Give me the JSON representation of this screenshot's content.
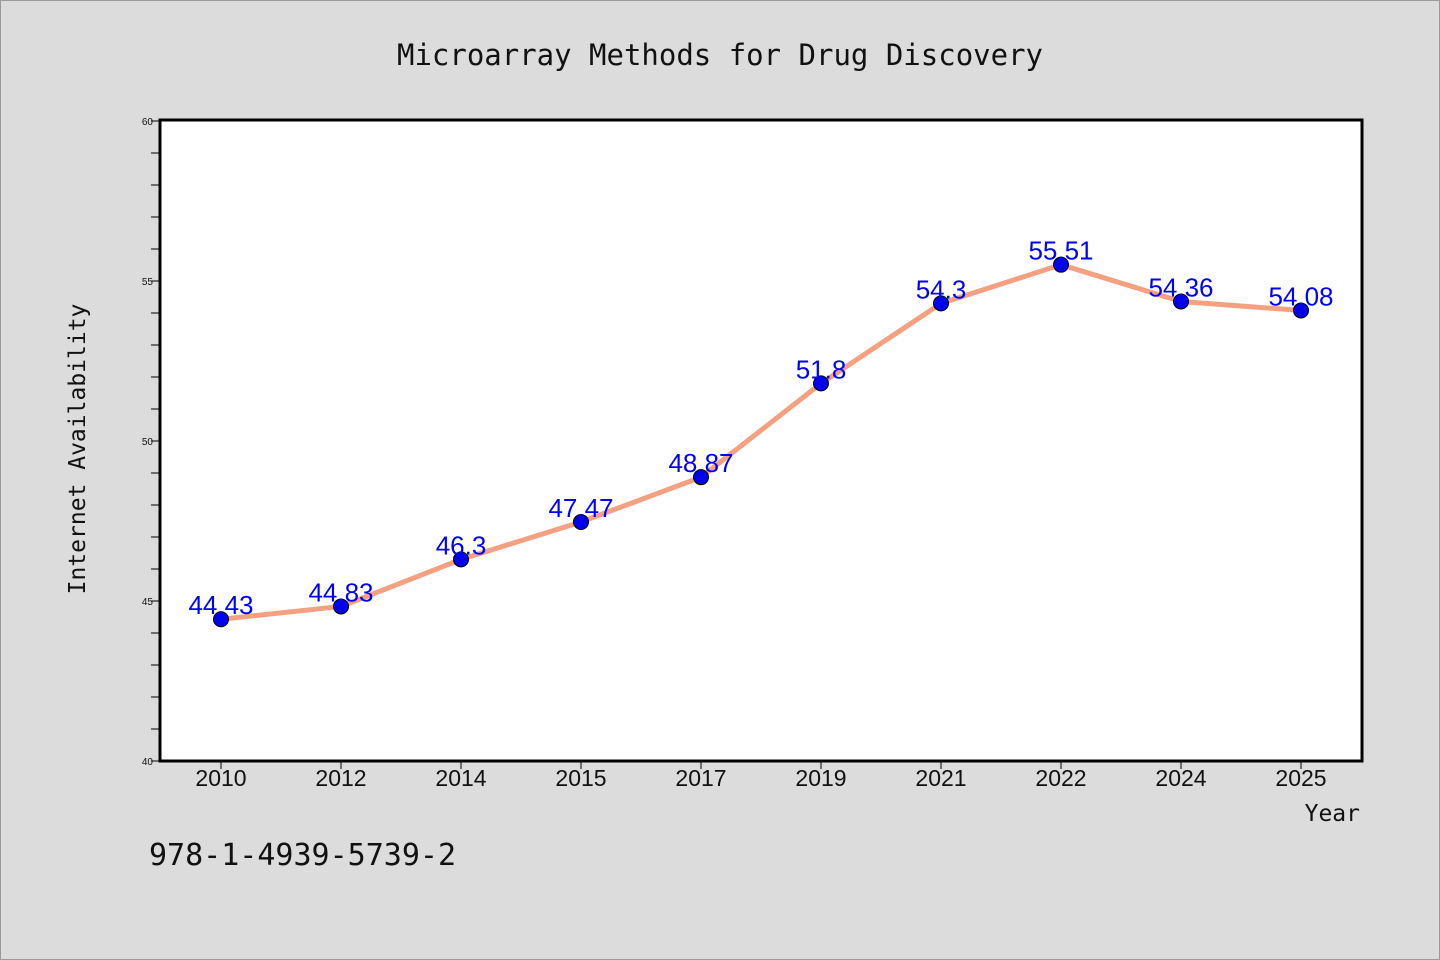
{
  "chart_data": {
    "type": "line",
    "title": "Microarray Methods for Drug Discovery",
    "xlabel": "Year",
    "ylabel": "Internet Availability",
    "categories": [
      "2010",
      "2012",
      "2014",
      "2015",
      "2017",
      "2019",
      "2021",
      "2022",
      "2024",
      "2025"
    ],
    "series": [
      {
        "values": [
          44.43,
          44.83,
          46.3,
          47.47,
          48.87,
          51.8,
          54.3,
          55.51,
          54.36,
          54.08
        ],
        "labels": [
          "44.43",
          "44.83",
          "46.3",
          "47.47",
          "48.87",
          "51.8",
          "54.3",
          "55.51",
          "54.36",
          "54.08"
        ],
        "line_color": "#f5a080",
        "marker_color": "#0000ee"
      }
    ],
    "ylim": [
      40,
      60
    ],
    "yticks": [
      40,
      45,
      50,
      55,
      60
    ],
    "grid": false,
    "legend": "none"
  },
  "annotation": "978-1-4939-5739-2",
  "colors": {
    "background": "#dcdcdc",
    "plot_background": "#ffffff",
    "data_label": "#0000ff"
  }
}
